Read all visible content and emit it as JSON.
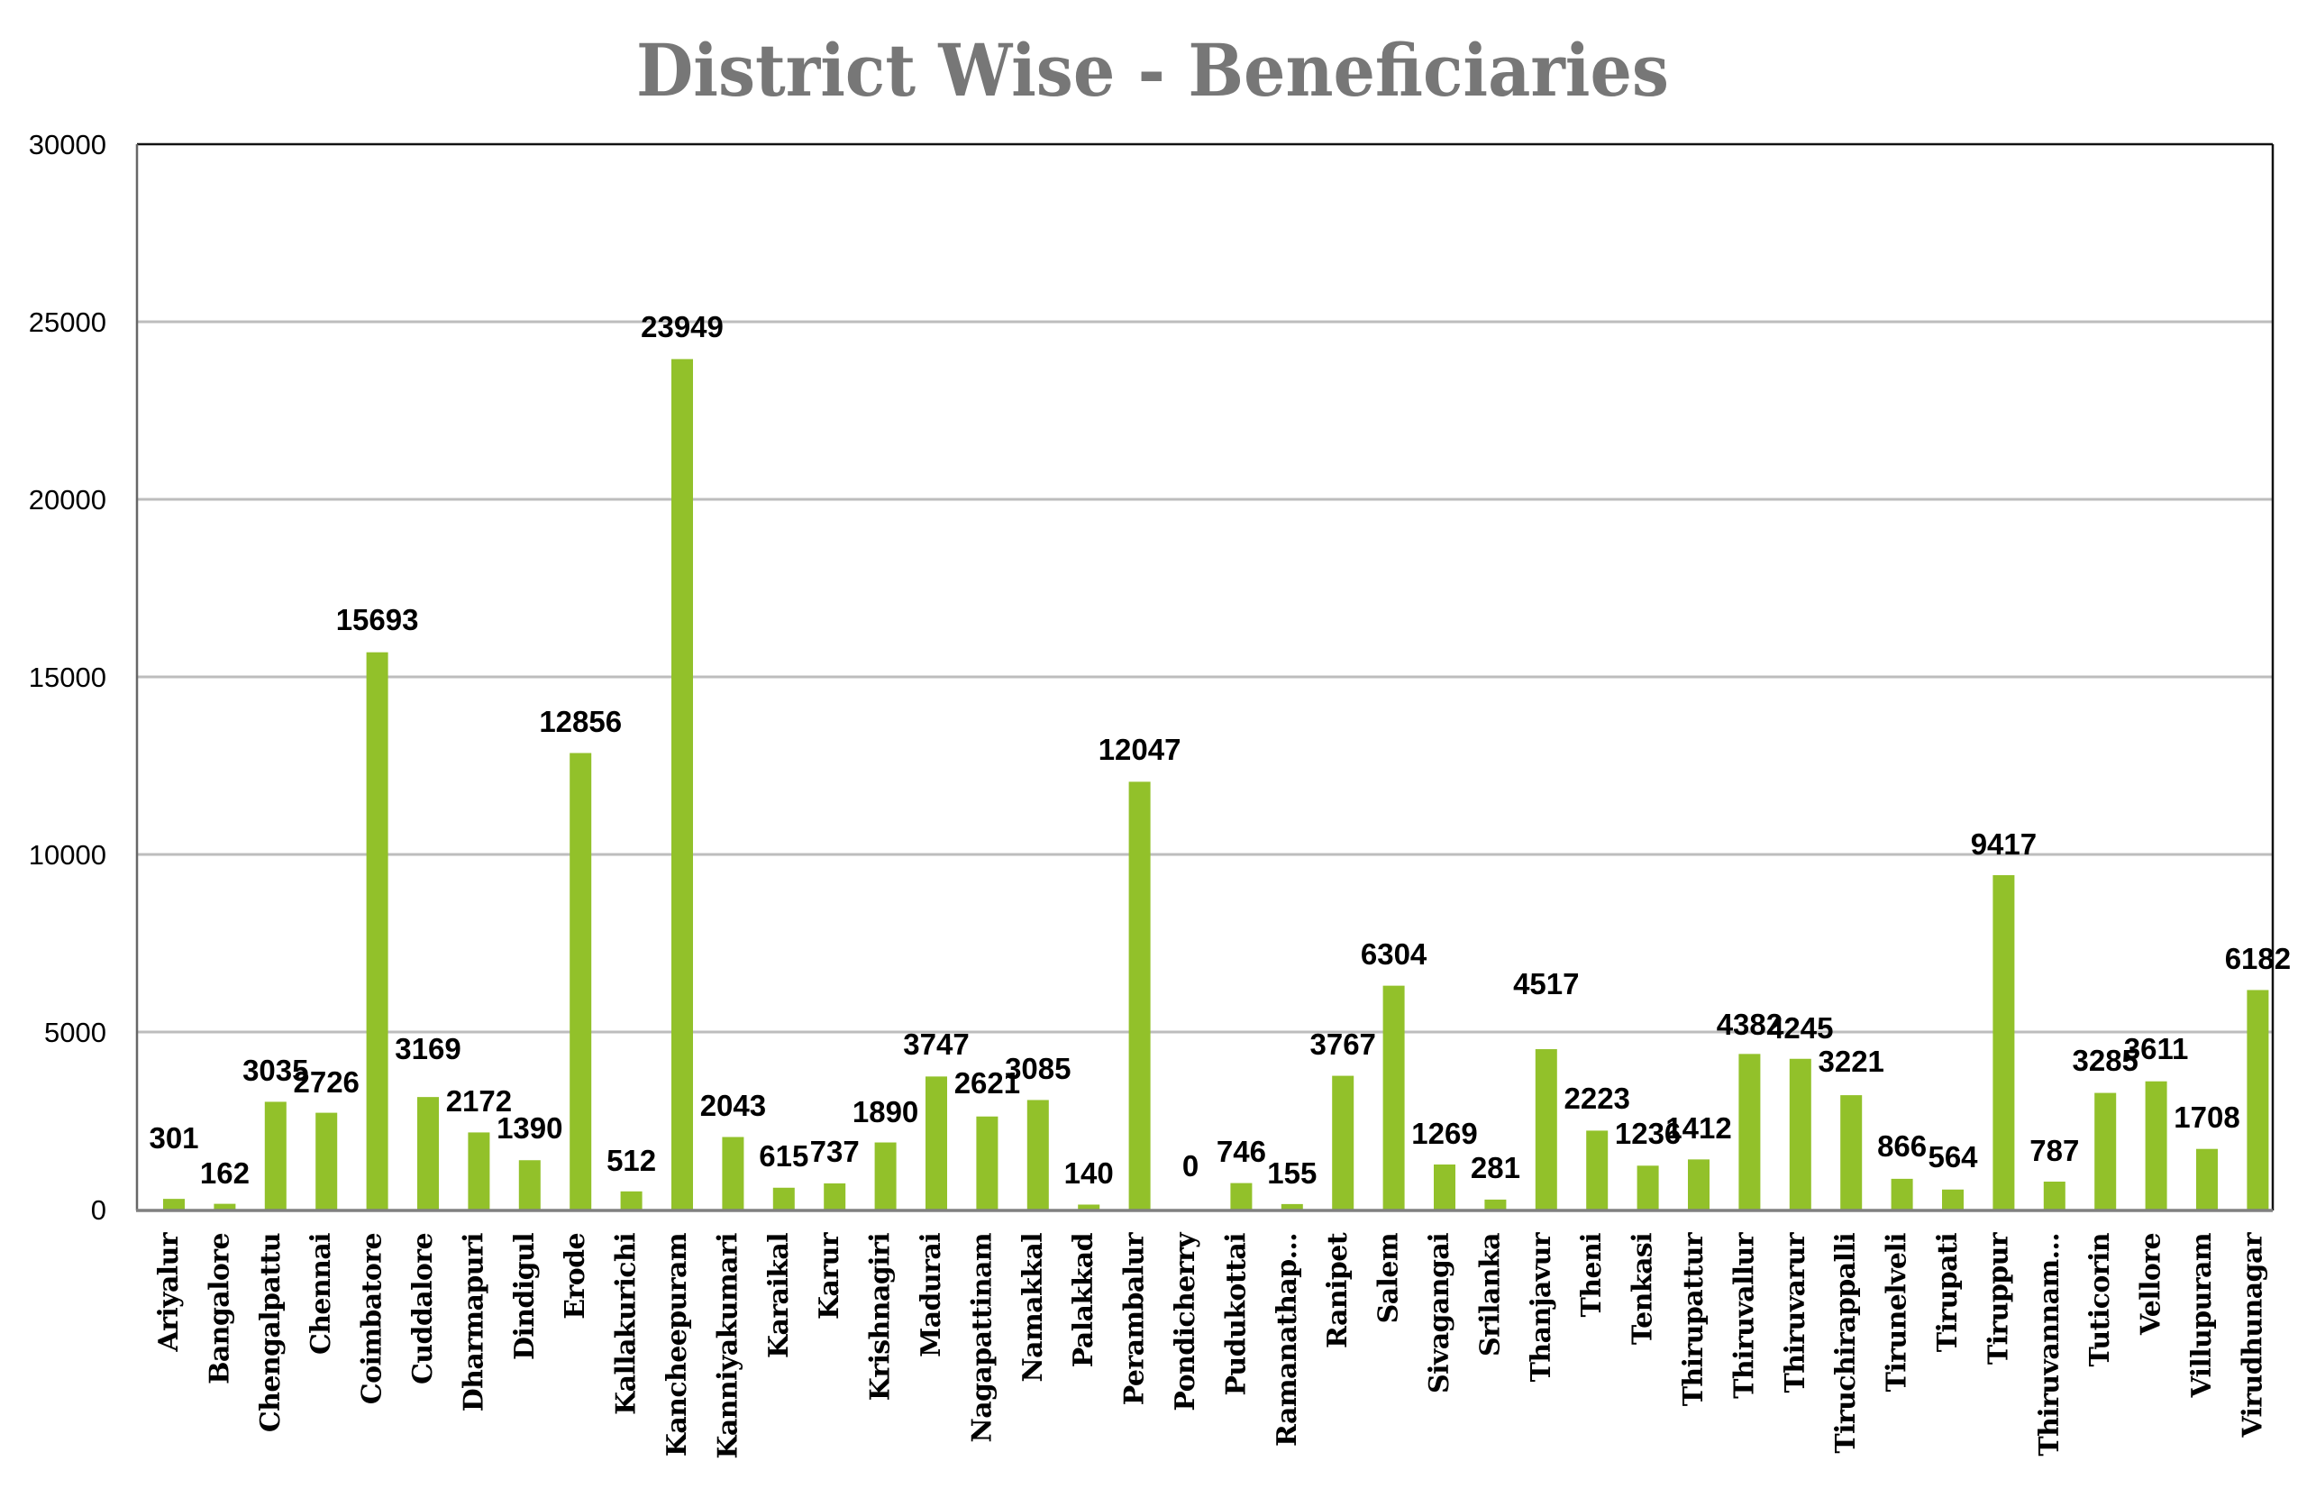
{
  "colors": {
    "bar": "#92C12A",
    "title": "#777777",
    "grid": "#BDBDBD",
    "text": "#000000"
  },
  "chart_data": {
    "type": "bar",
    "title": "District Wise - Beneficiaries",
    "xlabel": "",
    "ylabel": "",
    "ylim": [
      0,
      30000
    ],
    "yticks": [
      "0",
      "5000",
      "10000",
      "15000",
      "20000",
      "25000",
      "30000"
    ],
    "grid": true,
    "legend": "none",
    "categories": [
      "Ariyalur",
      "Bangalore",
      "Chengalpattu",
      "Chennai",
      "Coimbatore",
      "Cuddalore",
      "Dharmapuri",
      "Dindigul",
      "Erode",
      "Kallakurichi",
      "Kancheepuram",
      "Kanniyakumari",
      "Karaikal",
      "Karur",
      "Krishnagiri",
      "Madurai",
      "Nagapattinam",
      "Namakkal",
      "Palakkad",
      "Perambalur",
      "Pondicherry",
      "Pudukottai",
      "Ramanathap…",
      "Ranipet",
      "Salem",
      "Sivagangai",
      "Srilanka",
      "Thanjavur",
      "Theni",
      "Tenkasi",
      "Thirupattur",
      "Thiruvallur",
      "Thiruvarur",
      "Tiruchirappalli",
      "Tirunelveli",
      "Tirupati",
      "Tiruppur",
      "Thiruvannam…",
      "Tuticorin",
      "Vellore",
      "Villupuram",
      "Virudhunagar"
    ],
    "values": [
      301,
      162,
      3035,
      2726,
      15693,
      3169,
      2172,
      1390,
      12856,
      512,
      23949,
      2043,
      615,
      737,
      1890,
      3747,
      2621,
      3085,
      140,
      12047,
      0,
      746,
      155,
      3767,
      6304,
      1269,
      281,
      4517,
      2223,
      1236,
      1412,
      4382,
      4245,
      3221,
      866,
      564,
      9417,
      787,
      3285,
      3611,
      1708,
      6182
    ],
    "data_labels": [
      "301",
      "162",
      "3035",
      "2726",
      "15693",
      "3169",
      "2172",
      "1390",
      "12856",
      "512",
      "23949",
      "2043",
      "615",
      "737",
      "1890",
      "3747",
      "2621",
      "3085",
      "140",
      "12047",
      "0",
      "746",
      "155",
      "3767",
      "6304",
      "1269",
      "281",
      "4517",
      "2223",
      "1236",
      "1412",
      "4382",
      "4245",
      "3221",
      "866",
      "564",
      "9417",
      "787",
      "3285",
      "3611",
      "1708",
      "6182"
    ]
  }
}
